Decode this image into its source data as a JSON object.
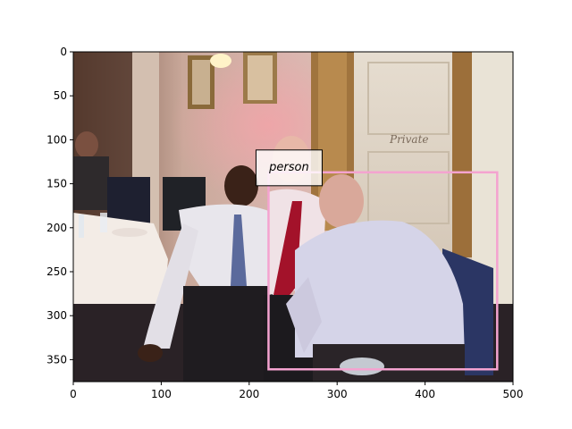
{
  "figure": {
    "image_extent": {
      "x": [
        0,
        500
      ],
      "y": [
        375,
        0
      ]
    },
    "x_ticks": [
      0,
      100,
      200,
      300,
      400,
      500
    ],
    "y_ticks": [
      0,
      50,
      100,
      150,
      200,
      250,
      300,
      350
    ],
    "scene": "photo-of-three-men-seated-in-restaurant",
    "detections": [
      {
        "label": "person",
        "box": {
          "x0": 222,
          "y0": 137,
          "x1": 482,
          "y1": 361
        },
        "color": "#f4a3d0"
      }
    ]
  }
}
